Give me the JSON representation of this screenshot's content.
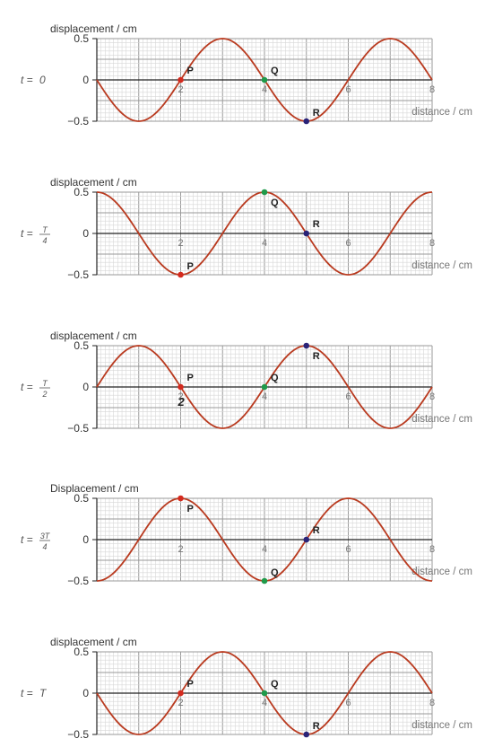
{
  "colors": {
    "wave": "#b93a1f",
    "P": "#d42a1e",
    "Q": "#1f9a4a",
    "R": "#2a2378",
    "minor_grid": "#d7d7d7",
    "major_grid": "#9a9a9a"
  },
  "chart_data": [
    {
      "type": "line",
      "ylabel": "displacement / cm",
      "xlabel": "distance / cm",
      "time_label": {
        "prefix": "t =",
        "value": "0"
      },
      "xlim": [
        0,
        8
      ],
      "ylim": [
        -0.5,
        0.5
      ],
      "yticks": [
        "0.5",
        "0",
        "−0.5"
      ],
      "xticks": [
        "2",
        "4",
        "6",
        "8"
      ],
      "grid": true,
      "series": [
        {
          "x": [
            0,
            0.5,
            1,
            1.5,
            2,
            2.5,
            3,
            3.5,
            4,
            4.5,
            5,
            5.5,
            6,
            6.5,
            7,
            7.5,
            8
          ],
          "y": [
            0,
            -0.35,
            -0.5,
            -0.35,
            0,
            0.35,
            0.5,
            0.35,
            0,
            -0.35,
            -0.5,
            -0.35,
            0,
            0.35,
            0.5,
            0.35,
            0
          ]
        }
      ],
      "points": [
        {
          "label": "P",
          "x": 2,
          "y": 0
        },
        {
          "label": "Q",
          "x": 4,
          "y": 0
        },
        {
          "label": "R",
          "x": 5,
          "y": -0.5
        }
      ]
    },
    {
      "type": "line",
      "ylabel": "displacement / cm",
      "xlabel": "distance / cm",
      "time_label": {
        "prefix": "t =",
        "num": "T",
        "den": "4"
      },
      "xlim": [
        0,
        8
      ],
      "ylim": [
        -0.5,
        0.5
      ],
      "yticks": [
        "0.5",
        "0",
        "−0.5"
      ],
      "xticks": [
        "2",
        "4",
        "6",
        "8"
      ],
      "grid": true,
      "series": [
        {
          "x": [
            0,
            0.5,
            1,
            1.5,
            2,
            2.5,
            3,
            3.5,
            4,
            4.5,
            5,
            5.5,
            6,
            6.5,
            7,
            7.5,
            8
          ],
          "y": [
            0.5,
            0.35,
            0,
            -0.35,
            -0.5,
            -0.35,
            0,
            0.35,
            0.5,
            0.35,
            0,
            -0.35,
            -0.5,
            -0.35,
            0,
            0.35,
            0.5
          ]
        }
      ],
      "points": [
        {
          "label": "P",
          "x": 2,
          "y": -0.5
        },
        {
          "label": "Q",
          "x": 4,
          "y": 0.5
        },
        {
          "label": "R",
          "x": 5,
          "y": 0
        }
      ]
    },
    {
      "type": "line",
      "ylabel": "displacement / cm",
      "xlabel": "distance / cm",
      "time_label": {
        "prefix": "t =",
        "num": "T",
        "den": "2"
      },
      "xlim": [
        0,
        8
      ],
      "ylim": [
        -0.5,
        0.5
      ],
      "yticks": [
        "0.5",
        "0",
        "−0.5"
      ],
      "xticks": [
        "2",
        "4",
        "6",
        "8"
      ],
      "grid": true,
      "series": [
        {
          "x": [
            0,
            0.5,
            1,
            1.5,
            2,
            2.5,
            3,
            3.5,
            4,
            4.5,
            5,
            5.5,
            6,
            6.5,
            7,
            7.5,
            8
          ],
          "y": [
            0,
            0.35,
            0.5,
            0.35,
            0,
            -0.35,
            -0.5,
            -0.35,
            0,
            0.35,
            0.5,
            0.35,
            0,
            -0.35,
            -0.5,
            -0.35,
            0
          ]
        }
      ],
      "points": [
        {
          "label": "P",
          "x": 2,
          "y": 0
        },
        {
          "label": "Q",
          "x": 4,
          "y": 0
        },
        {
          "label": "R",
          "x": 5,
          "y": 0.5
        }
      ]
    },
    {
      "type": "line",
      "ylabel": "Displacement / cm",
      "xlabel": "distance / cm",
      "time_label": {
        "prefix": "t =",
        "num": "3T",
        "den": "4"
      },
      "xlim": [
        0,
        8
      ],
      "ylim": [
        -0.5,
        0.5
      ],
      "yticks": [
        "0.5",
        "0",
        "−0.5"
      ],
      "xticks": [
        "2",
        "4",
        "6",
        "8"
      ],
      "grid": true,
      "series": [
        {
          "x": [
            0,
            0.5,
            1,
            1.5,
            2,
            2.5,
            3,
            3.5,
            4,
            4.5,
            5,
            5.5,
            6,
            6.5,
            7,
            7.5,
            8
          ],
          "y": [
            -0.5,
            -0.35,
            0,
            0.35,
            0.5,
            0.35,
            0,
            -0.35,
            -0.5,
            -0.35,
            0,
            0.35,
            0.5,
            0.35,
            0,
            -0.35,
            -0.5
          ]
        }
      ],
      "points": [
        {
          "label": "P",
          "x": 2,
          "y": 0.5
        },
        {
          "label": "Q",
          "x": 4,
          "y": -0.5
        },
        {
          "label": "R",
          "x": 5,
          "y": 0
        }
      ]
    },
    {
      "type": "line",
      "ylabel": "displacement / cm",
      "xlabel": "distance / cm",
      "time_label": {
        "prefix": "t =",
        "value": "T"
      },
      "xlim": [
        0,
        8
      ],
      "ylim": [
        -0.5,
        0.5
      ],
      "yticks": [
        "0.5",
        "0",
        "−0.5"
      ],
      "xticks": [
        "2",
        "4",
        "6",
        "8"
      ],
      "grid": true,
      "series": [
        {
          "x": [
            0,
            0.5,
            1,
            1.5,
            2,
            2.5,
            3,
            3.5,
            4,
            4.5,
            5,
            5.5,
            6,
            6.5,
            7,
            7.5,
            8
          ],
          "y": [
            0,
            -0.35,
            -0.5,
            -0.35,
            0,
            0.35,
            0.5,
            0.35,
            0,
            -0.35,
            -0.5,
            -0.35,
            0,
            0.35,
            0.5,
            0.35,
            0
          ]
        }
      ],
      "points": [
        {
          "label": "P",
          "x": 2,
          "y": 0
        },
        {
          "label": "Q",
          "x": 4,
          "y": 0
        },
        {
          "label": "R",
          "x": 5,
          "y": -0.5
        }
      ]
    }
  ],
  "annotations": {
    "panel3_extra_label": "2"
  }
}
